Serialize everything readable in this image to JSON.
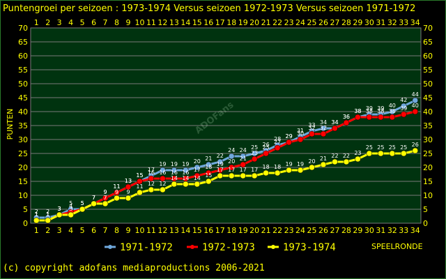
{
  "chart_data": {
    "type": "line",
    "title": "Puntengroei per seizoen : 1973-1974 Versus seizoen 1972-1973 Versus seizoen 1971-1972",
    "ylabel": "PUNTEN",
    "xlabel": "SPEELRONDE",
    "ylim": [
      0,
      70
    ],
    "yticks": [
      0,
      5,
      10,
      15,
      20,
      25,
      30,
      35,
      40,
      45,
      50,
      55,
      60,
      65,
      70
    ],
    "x": [
      1,
      2,
      3,
      4,
      5,
      6,
      7,
      8,
      9,
      10,
      11,
      12,
      13,
      14,
      15,
      16,
      17,
      18,
      19,
      20,
      21,
      22,
      23,
      24,
      25,
      26,
      27,
      28,
      29,
      30,
      31,
      32,
      33,
      34
    ],
    "grid": true,
    "legend_position": "bottom",
    "series": [
      {
        "name": "1971-1972",
        "color": "#6fa8dc",
        "values": [
          2,
          2,
          3,
          5,
          5,
          7,
          9,
          11,
          13,
          15,
          17,
          19,
          19,
          19,
          20,
          21,
          22,
          24,
          24,
          25,
          26,
          28,
          29,
          31,
          33,
          34,
          34,
          36,
          38,
          39,
          39,
          40,
          42,
          44
        ]
      },
      {
        "name": "1972-1973",
        "color": "#ff0000",
        "values": [
          1,
          1,
          3,
          4,
          5,
          7,
          9,
          11,
          13,
          15,
          16,
          16,
          16,
          16,
          17,
          18,
          19,
          20,
          21,
          23,
          25,
          27,
          29,
          30,
          32,
          32,
          34,
          36,
          38,
          38,
          38,
          38,
          39,
          40
        ]
      },
      {
        "name": "1973-1974",
        "color": "#ffff00",
        "values": [
          1,
          1,
          3,
          3,
          5,
          7,
          7,
          9,
          9,
          11,
          12,
          12,
          14,
          14,
          14,
          15,
          17,
          17,
          17,
          17,
          18,
          18,
          19,
          19,
          20,
          21,
          22,
          22,
          23,
          25,
          25,
          25,
          25,
          26
        ]
      }
    ]
  },
  "watermark": "ADOFans",
  "footer": {
    "copyright": "(c) copyright adofans mediaproductions 2006-2021"
  }
}
